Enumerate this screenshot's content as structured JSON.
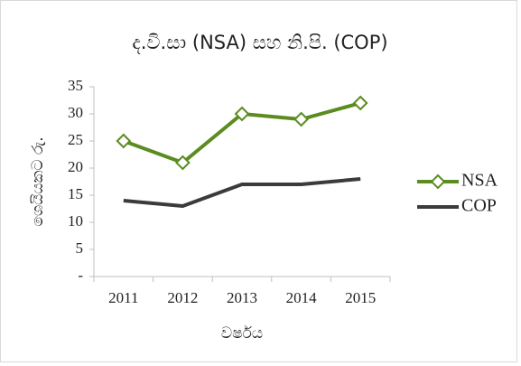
{
  "chart_data": {
    "type": "line",
    "title": "ද.වි.සා (NSA) සහ නි.පි. (COP)",
    "y_label": "ශෙයියකට රු.",
    "x_label": "වර්ෂය",
    "categories": [
      "2011",
      "2012",
      "2013",
      "2014",
      "2015"
    ],
    "series": [
      {
        "name": "NSA",
        "color": "#5b8c1f",
        "marker": "diamond",
        "values": [
          25,
          21,
          30,
          29,
          32
        ]
      },
      {
        "name": "COP",
        "color": "#3b3b3b",
        "values": [
          14,
          13,
          17,
          17,
          18
        ]
      }
    ],
    "ylim": [
      0,
      35
    ],
    "yticks": [
      {
        "value": 0,
        "label": "-"
      },
      5,
      10,
      15,
      20,
      25,
      30,
      35
    ],
    "grid": false,
    "legend": "right"
  }
}
